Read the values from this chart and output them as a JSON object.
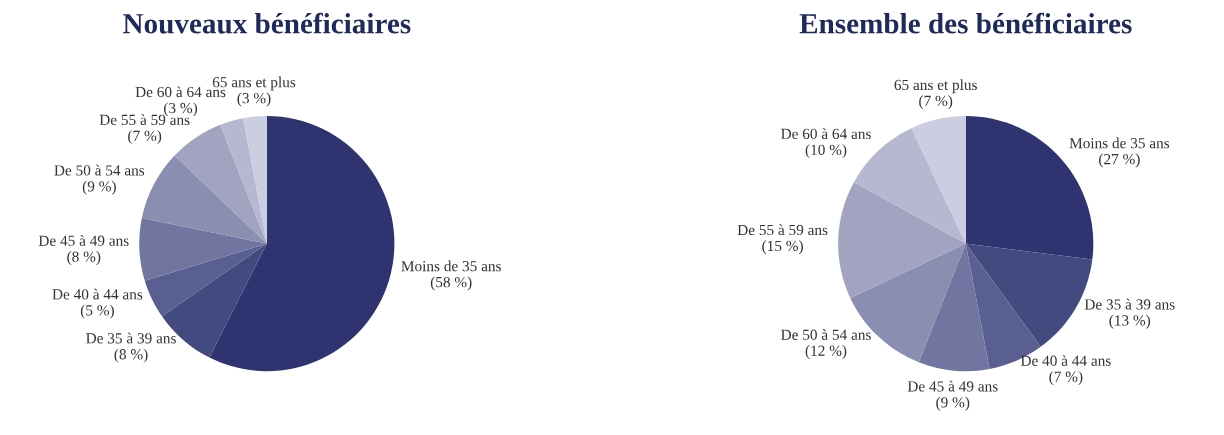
{
  "chart_data": [
    {
      "type": "pie",
      "title": "Nouveaux bénéficiaires",
      "categories": [
        "Moins de 35 ans",
        "De 35 à 39 ans",
        "De 40 à 44 ans",
        "De 45 à 49 ans",
        "De 50 à 54 ans",
        "De 55 à 59 ans",
        "De 60 à 64 ans",
        "65 ans et plus"
      ],
      "values": [
        58,
        8,
        5,
        8,
        9,
        7,
        3,
        3
      ],
      "value_labels": [
        "(58 %)",
        "(8 %)",
        "(5 %)",
        "(8 %)",
        "(9 %)",
        "(7 %)",
        "(3 %)",
        "(3 %)"
      ],
      "colors": [
        "#2f3470",
        "#434a80",
        "#5a5f92",
        "#7176a1",
        "#8a8eb1",
        "#a1a3c1",
        "#b6b8d2",
        "#cbcde1"
      ]
    },
    {
      "type": "pie",
      "title": "Ensemble des bénéficiaires",
      "categories": [
        "Moins de 35 ans",
        "De 35 à 39 ans",
        "De 40 à 44 ans",
        "De 45 à 49 ans",
        "De 50 à 54 ans",
        "De 55 à 59 ans",
        "De 60 à 64 ans",
        "65 ans et plus"
      ],
      "values": [
        27,
        13,
        7,
        9,
        12,
        15,
        10,
        7
      ],
      "value_labels": [
        "(27 %)",
        "(13 %)",
        "(7 %)",
        "(9 %)",
        "(12 %)",
        "(15 %)",
        "(10 %)",
        "(7 %)"
      ],
      "colors": [
        "#2f3470",
        "#434a80",
        "#5a5f92",
        "#7176a1",
        "#8a8eb1",
        "#a1a3c1",
        "#b6b8d2",
        "#cbcde1"
      ]
    }
  ]
}
